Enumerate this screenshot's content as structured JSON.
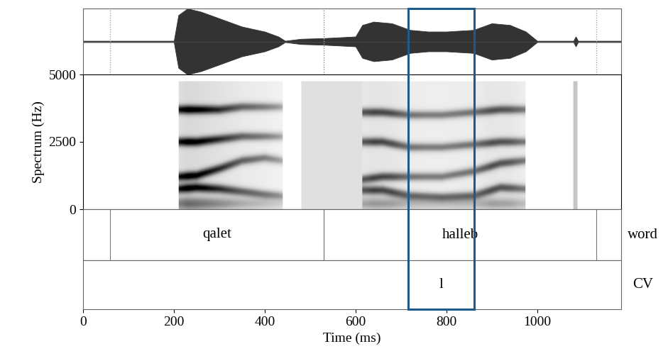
{
  "chart_data": {
    "type": "spectrogram",
    "xlabel": "Time (ms)",
    "ylabel": "Spectrum (Hz)",
    "xlim": [
      0,
      1185
    ],
    "xticks": [
      0,
      200,
      400,
      600,
      800,
      1000
    ],
    "ylim": [
      0,
      5000
    ],
    "yticks": [
      0,
      2500,
      5000
    ],
    "waveform": {
      "ylim": [
        -1,
        1
      ],
      "x": [
        0,
        200,
        210,
        230,
        260,
        300,
        350,
        400,
        430,
        445,
        480,
        530,
        600,
        615,
        640,
        680,
        720,
        760,
        800,
        860,
        900,
        940,
        975,
        1000,
        1080,
        1085,
        1090,
        1185
      ],
      "amplitude": [
        0.02,
        0.02,
        0.8,
        1.0,
        0.9,
        0.7,
        0.45,
        0.3,
        0.15,
        0.02,
        0.08,
        0.1,
        0.15,
        0.5,
        0.6,
        0.55,
        0.35,
        0.3,
        0.3,
        0.35,
        0.55,
        0.5,
        0.3,
        0.02,
        0.02,
        0.15,
        0.02,
        0.02
      ]
    },
    "spectrogram": {
      "max_frequency": 4750,
      "segments": [
        {
          "x": [
            210,
            250,
            300,
            350,
            400,
            440
          ],
          "formants": [
            [
              750,
              800,
              750,
              650,
              550,
              500
            ],
            [
              1200,
              1250,
              1500,
              1800,
              1900,
              1800
            ],
            [
              2500,
              2500,
              2600,
              2700,
              2700,
              2700
            ],
            [
              3700,
              3700,
              3700,
              3800,
              3800,
              3800
            ]
          ]
        },
        {
          "x": [
            615,
            660,
            720,
            790,
            860,
            920,
            975
          ],
          "formants": [
            [
              700,
              700,
              500,
              450,
              500,
              800,
              750
            ],
            [
              1100,
              1200,
              1200,
              1200,
              1400,
              1700,
              1800
            ],
            [
              2500,
              2500,
              2300,
              2300,
              2400,
              2500,
              2500
            ],
            [
              3600,
              3600,
              3500,
              3500,
              3600,
              3700,
              3700
            ]
          ]
        }
      ],
      "noise": [
        {
          "start": 480,
          "end": 615,
          "level": 0.25
        },
        {
          "start": 1080,
          "end": 1090,
          "level": 0.4
        }
      ]
    },
    "tiers": [
      {
        "name": "word",
        "intervals": [
          {
            "start": 60,
            "end": 530,
            "text": "qalet"
          },
          {
            "start": 530,
            "end": 1130,
            "text": "halleb"
          }
        ]
      },
      {
        "name": "CV",
        "intervals": [
          {
            "start": 716,
            "end": 861,
            "text": "l"
          }
        ]
      }
    ],
    "highlight": {
      "start": 716,
      "end": 861,
      "color": "#1f5a8c"
    }
  }
}
